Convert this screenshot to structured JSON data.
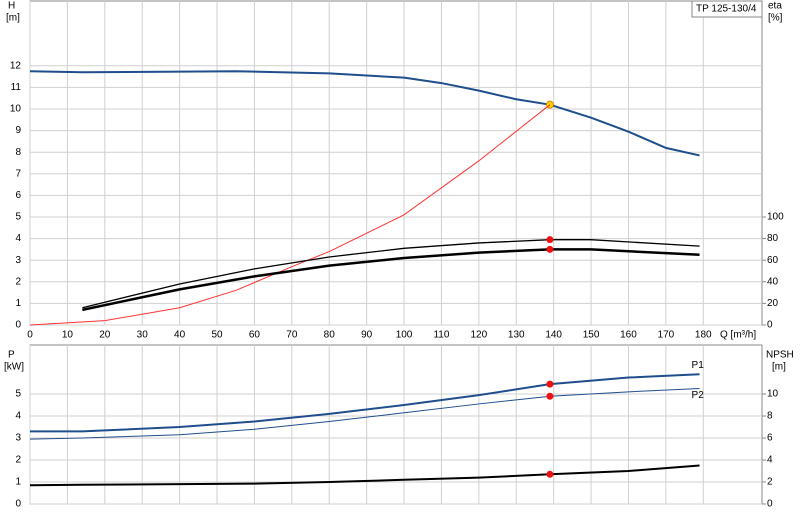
{
  "chart_data": [
    {
      "type": "line",
      "title": "TP 125-130/4",
      "xlabel": "Q [m³/h]",
      "ylabel": "H",
      "yunit": "[m]",
      "y2label": "eta",
      "y2unit": "[%]",
      "xlim": [
        0,
        195.7
      ],
      "xticks": [
        0,
        10,
        20,
        30,
        40,
        50,
        60,
        70,
        80,
        90,
        100,
        110,
        120,
        130,
        140,
        150,
        160,
        170,
        180
      ],
      "ylim": [
        0,
        15
      ],
      "yticks": [
        0,
        1,
        2,
        3,
        4,
        5,
        6,
        7,
        8,
        9,
        10,
        11,
        12
      ],
      "y2lim": [
        0,
        300
      ],
      "y2ticks": [
        0,
        20,
        40,
        60,
        80,
        100
      ],
      "grid": true,
      "duty_point": 139,
      "series": [
        {
          "color": "#1f4e8c",
          "width": 2,
          "marker_color": "#ffd700",
          "x": [
            0,
            14,
            55,
            80,
            100,
            110,
            120,
            130,
            139,
            150,
            160,
            170,
            179
          ],
          "values": [
            11.75,
            11.7,
            11.75,
            11.65,
            11.45,
            11.2,
            10.85,
            10.45,
            10.2,
            9.6,
            8.95,
            8.2,
            7.85
          ]
        },
        {
          "color": "#ff3333",
          "width": 1,
          "x": [
            0,
            20,
            40,
            55,
            70,
            80,
            100,
            120,
            139
          ],
          "values": [
            0,
            0.2,
            0.8,
            1.6,
            2.7,
            3.4,
            5.1,
            7.6,
            10.2
          ]
        },
        {
          "color": "#000000",
          "width": 1.3,
          "axis": "y2",
          "marker_color": "#ee1111",
          "x": [
            14,
            40,
            60,
            80,
            100,
            120,
            139,
            150,
            179
          ],
          "values": [
            16,
            38,
            52,
            63,
            71,
            76,
            79,
            79,
            73
          ]
        },
        {
          "color": "#000000",
          "width": 2.5,
          "axis": "y2",
          "marker_color": "#ee1111",
          "x": [
            14,
            40,
            60,
            80,
            100,
            120,
            139,
            150,
            179
          ],
          "values": [
            14,
            33,
            45,
            55,
            62,
            67,
            70,
            70,
            65
          ]
        }
      ]
    },
    {
      "type": "line",
      "ylabel": "P",
      "yunit": "[kW]",
      "y2label": "NPSH",
      "y2unit": "[m]",
      "xlim": [
        0,
        195.7
      ],
      "ylim": [
        0,
        7.23
      ],
      "yticks": [
        0,
        1,
        2,
        3,
        4,
        5
      ],
      "y2lim": [
        0,
        14.46
      ],
      "y2ticks": [
        0,
        2,
        4,
        6,
        8,
        10
      ],
      "grid": true,
      "duty_point": 139,
      "series": [
        {
          "name": "P1",
          "color": "#1f4e8c",
          "width": 2,
          "marker_color": "#ee1111",
          "x": [
            0,
            14,
            40,
            60,
            80,
            100,
            120,
            139,
            160,
            179
          ],
          "values": [
            3.3,
            3.3,
            3.5,
            3.75,
            4.1,
            4.5,
            4.95,
            5.45,
            5.75,
            5.9
          ]
        },
        {
          "name": "P2",
          "color": "#1f4e8c",
          "width": 1,
          "marker_color": "#ee1111",
          "x": [
            0,
            14,
            40,
            60,
            80,
            100,
            120,
            139,
            160,
            179
          ],
          "values": [
            2.95,
            3.0,
            3.15,
            3.4,
            3.75,
            4.15,
            4.55,
            4.9,
            5.1,
            5.25
          ]
        },
        {
          "color": "#000000",
          "width": 2,
          "axis": "y2",
          "marker_color": "#ee1111",
          "x": [
            0,
            14,
            60,
            80,
            100,
            120,
            139,
            160,
            179
          ],
          "values": [
            1.7,
            1.75,
            1.85,
            2.0,
            2.2,
            2.4,
            2.7,
            3.0,
            3.5
          ]
        }
      ]
    }
  ]
}
